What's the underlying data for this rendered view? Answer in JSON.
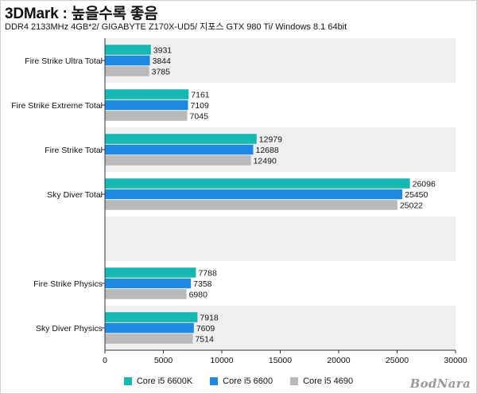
{
  "header": {
    "title": "3DMark : 높을수록 좋음",
    "subtitle": "DDR4 2133MHz 4GB*2/ GIGABYTE Z170X-UD5/ 지포스 GTX 980 Ti/ Windows 8.1 64bit"
  },
  "logo": "BodNara",
  "colors": {
    "series_1": "#13b8b0",
    "series_2": "#1e88e5",
    "series_3": "#b9b9b9",
    "band": "#efefef"
  },
  "chart_data": {
    "type": "bar",
    "orientation": "horizontal",
    "categories": [
      "Fire Strike Ultra Total",
      "Fire Strike Extreme Total",
      "Fire Strike Total",
      "Sky Diver Total",
      "",
      "Fire Strike Physics",
      "Sky Diver Physics"
    ],
    "series": [
      {
        "name": "Core i5 6600K",
        "values": [
          3931,
          7161,
          12979,
          26096,
          null,
          7788,
          7918
        ]
      },
      {
        "name": "Core i5 6600",
        "values": [
          3844,
          7109,
          12688,
          25450,
          null,
          7358,
          7609
        ]
      },
      {
        "name": "Core i5 4690",
        "values": [
          3785,
          7045,
          12490,
          25022,
          null,
          6980,
          7514
        ]
      }
    ],
    "xlim": [
      0,
      30000
    ],
    "xticks": [
      0,
      5000,
      10000,
      15000,
      20000,
      25000,
      30000
    ],
    "legend_position": "bottom-center",
    "grid": false
  }
}
